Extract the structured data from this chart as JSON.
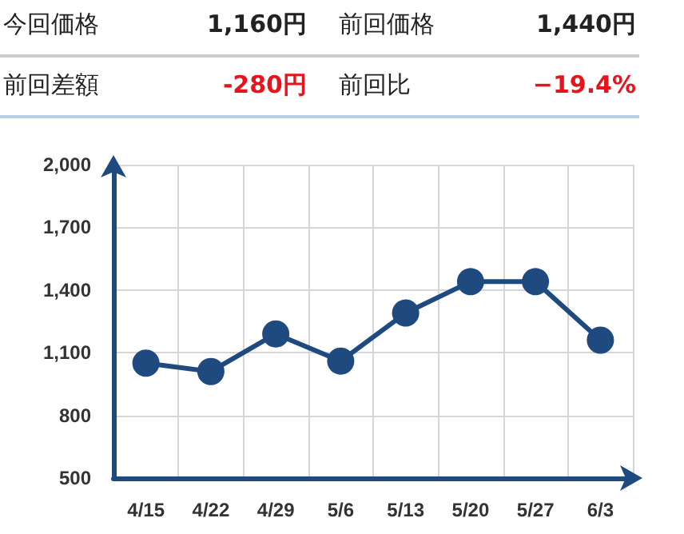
{
  "chart_data": {
    "type": "line",
    "annotations": [
      "今回価格",
      "1,160円",
      "前回価格",
      "1,440円",
      "前回差額",
      "-280円",
      "前回比",
      "−19.4%"
    ],
    "categories": [
      "4/15",
      "4/22",
      "4/29",
      "5/6",
      "5/13",
      "5/20",
      "5/27",
      "6/3"
    ],
    "series": [
      {
        "color": "#1f4a7f",
        "values": [
          1050,
          1010,
          1190,
          1060,
          1290,
          1440,
          1440,
          1160
        ]
      }
    ],
    "ylim": [
      500,
      2000
    ],
    "yticks": [
      500,
      800,
      {
        "value": 1100,
        "label": "1,100"
      },
      {
        "value": 1400,
        "label": "1,400"
      },
      {
        "value": 1700,
        "label": "1,700"
      },
      {
        "value": 2000,
        "label": "2,000"
      }
    ],
    "grid": true,
    "marker": "circle"
  }
}
